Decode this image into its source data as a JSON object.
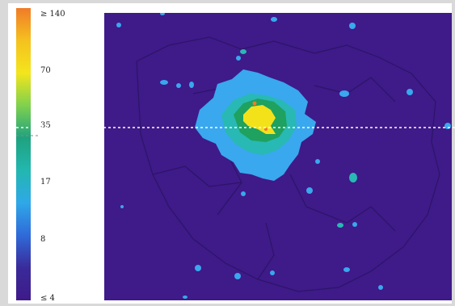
{
  "colorbar": {
    "ticks": [
      {
        "label": "≥ 140",
        "value": 140
      },
      {
        "label": "70",
        "value": 70
      },
      {
        "label": "35",
        "value": 35
      },
      {
        "label": "17",
        "value": 17
      },
      {
        "label": "8",
        "value": 8
      },
      {
        "label": "≤ 4",
        "value": 4
      }
    ],
    "gradient": [
      "#f07b28",
      "#f5c11f",
      "#f3e51c",
      "#7fd14e",
      "#1fa27f",
      "#22b7b0",
      "#2fa8e8",
      "#2f6ad9",
      "#3a2a9a",
      "#3f1a89"
    ]
  },
  "map": {
    "background_color": "#3f1a89",
    "reference_line_value": "35",
    "palette": {
      "low": "#3f1a89",
      "light_blue": "#39a8ee",
      "blue": "#2f86df",
      "cyan": "#28b9b4",
      "green": "#1fa15f",
      "yellow": "#f3e21a",
      "orange": "#f07b28",
      "boundary": "#2c1566"
    }
  }
}
